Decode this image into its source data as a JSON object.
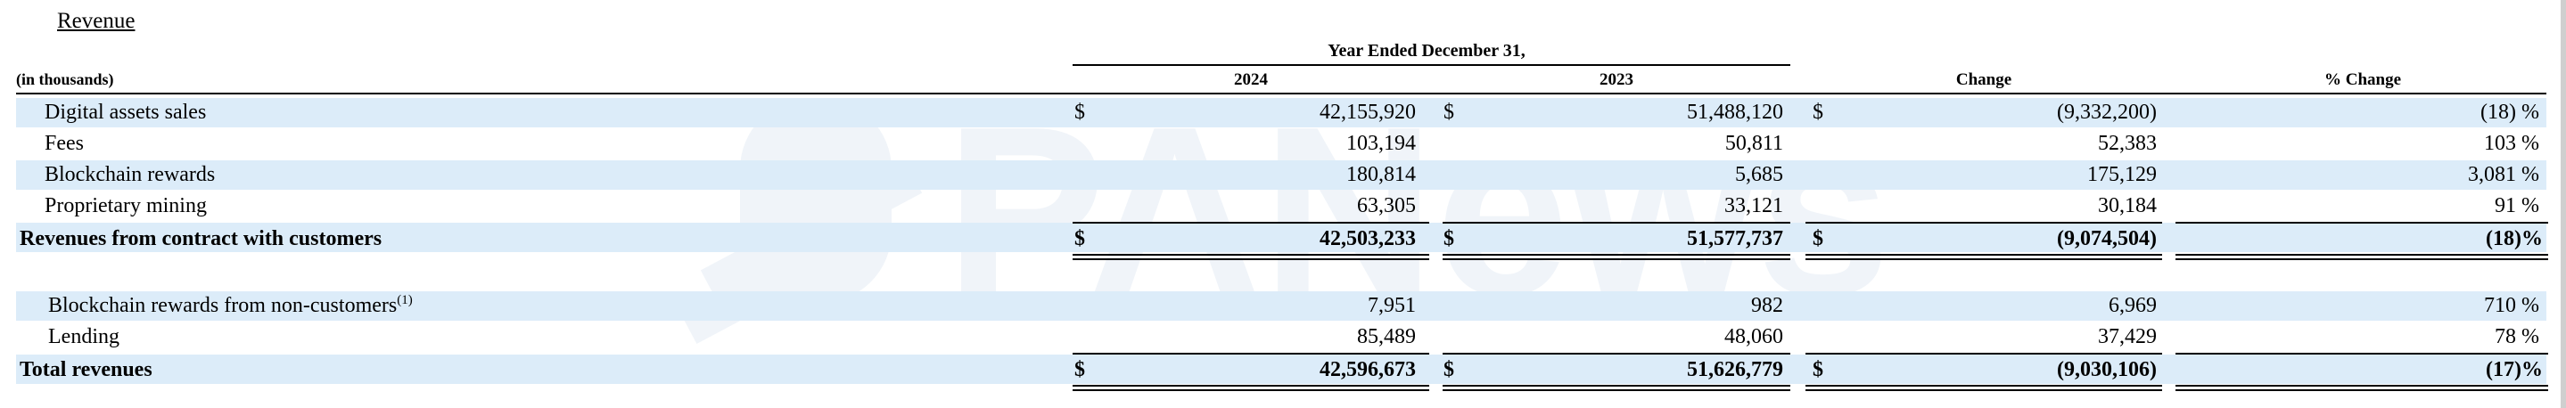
{
  "section_title": "Revenue",
  "units_label": "(in thousands)",
  "period_header": "Year Ended December 31,",
  "columns": {
    "y2024": "2024",
    "y2023": "2023",
    "change": "Change",
    "pct_change": "% Change"
  },
  "currency_symbol": "$",
  "footnote_marker": "(1)",
  "watermark_text": "PANews",
  "rows": [
    {
      "label": "Digital assets sales",
      "v2024": "42,155,920",
      "v2023": "51,488,120",
      "change": "(9,332,200)",
      "pct": "(18)",
      "pct_sign": "%"
    },
    {
      "label": "Fees",
      "v2024": "103,194",
      "v2023": "50,811",
      "change": "52,383",
      "pct": "103",
      "pct_sign": "%"
    },
    {
      "label": "Blockchain rewards",
      "v2024": "180,814",
      "v2023": "5,685",
      "change": "175,129",
      "pct": "3,081",
      "pct_sign": "%"
    },
    {
      "label": "Proprietary mining",
      "v2024": "63,305",
      "v2023": "33,121",
      "change": "30,184",
      "pct": "91",
      "pct_sign": "%"
    },
    {
      "label": "Revenues from contract with customers",
      "v2024": "42,503,233",
      "v2023": "51,577,737",
      "change": "(9,074,504)",
      "pct": "(18)%"
    },
    {
      "label": "Blockchain rewards from non-customers",
      "v2024": "7,951",
      "v2023": "982",
      "change": "6,969",
      "pct": "710",
      "pct_sign": "%"
    },
    {
      "label": "Lending",
      "v2024": "85,489",
      "v2023": "48,060",
      "change": "37,429",
      "pct": "78",
      "pct_sign": "%"
    },
    {
      "label": "Total revenues",
      "v2024": "42,596,673",
      "v2023": "51,626,779",
      "change": "(9,030,106)",
      "pct": "(17)%"
    }
  ]
}
